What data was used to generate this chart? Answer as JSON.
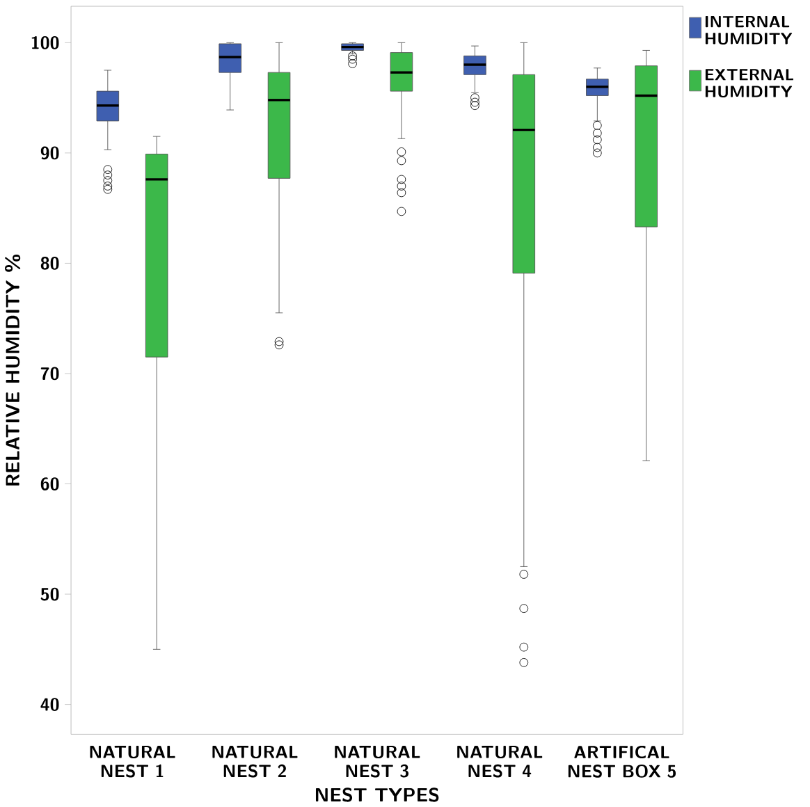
{
  "chart_data": {
    "type": "box",
    "xlabel": "NEST TYPES",
    "ylabel": "RELATIVE HUMIDITY %",
    "categories": [
      "NATURAL NEST 1",
      "NATURAL NEST 2",
      "NATURAL NEST 3",
      "NATURAL NEST 4",
      "ARTIFICAL NEST BOX 5"
    ],
    "ylim": [
      37.3,
      103.3
    ],
    "yticks": [
      40,
      50,
      60,
      70,
      80,
      90,
      100
    ],
    "grid": false,
    "legend": "top right",
    "series": [
      {
        "name": "INTERNAL HUMIDITY",
        "color": "#3f5fb0",
        "boxes": [
          {
            "low": 90.3,
            "q1": 92.9,
            "median": 94.3,
            "q3": 95.6,
            "high": 97.5,
            "outliers": [
              88.5,
              88.0,
              87.5,
              87.0,
              86.7
            ]
          },
          {
            "low": 93.9,
            "q1": 97.3,
            "median": 98.7,
            "q3": 99.9,
            "high": 100
          },
          {
            "low": 99.0,
            "q1": 99.3,
            "median": 99.6,
            "q3": 99.9,
            "high": 100,
            "outliers": [
              98.8,
              98.5,
              98.1
            ]
          },
          {
            "low": 95.5,
            "q1": 97.1,
            "median": 98.0,
            "q3": 98.8,
            "high": 99.7,
            "outliers": [
              95.0,
              94.6,
              94.3
            ]
          },
          {
            "low": 92.9,
            "q1": 95.2,
            "median": 96.0,
            "q3": 96.7,
            "high": 97.7,
            "outliers": [
              92.5,
              91.8,
              91.2,
              90.5,
              90.0
            ]
          }
        ]
      },
      {
        "name": "EXTERNAL HUMIDITY",
        "color": "#3cb84a",
        "boxes": [
          {
            "low": 45.0,
            "q1": 71.5,
            "median": 87.6,
            "q3": 89.9,
            "high": 91.5
          },
          {
            "low": 75.5,
            "q1": 87.7,
            "median": 94.8,
            "q3": 97.3,
            "high": 100,
            "outliers": [
              72.9,
              72.6
            ]
          },
          {
            "low": 91.3,
            "q1": 95.6,
            "median": 97.3,
            "q3": 99.1,
            "high": 100,
            "outliers": [
              90.1,
              89.3,
              87.6,
              87.0,
              86.4,
              84.7
            ]
          },
          {
            "low": 52.5,
            "q1": 79.1,
            "median": 92.1,
            "q3": 97.1,
            "high": 100,
            "outliers": [
              51.8,
              48.7,
              45.2,
              43.8
            ]
          },
          {
            "low": 62.1,
            "q1": 83.3,
            "median": 95.2,
            "q3": 97.9,
            "high": 99.3
          }
        ]
      }
    ]
  }
}
